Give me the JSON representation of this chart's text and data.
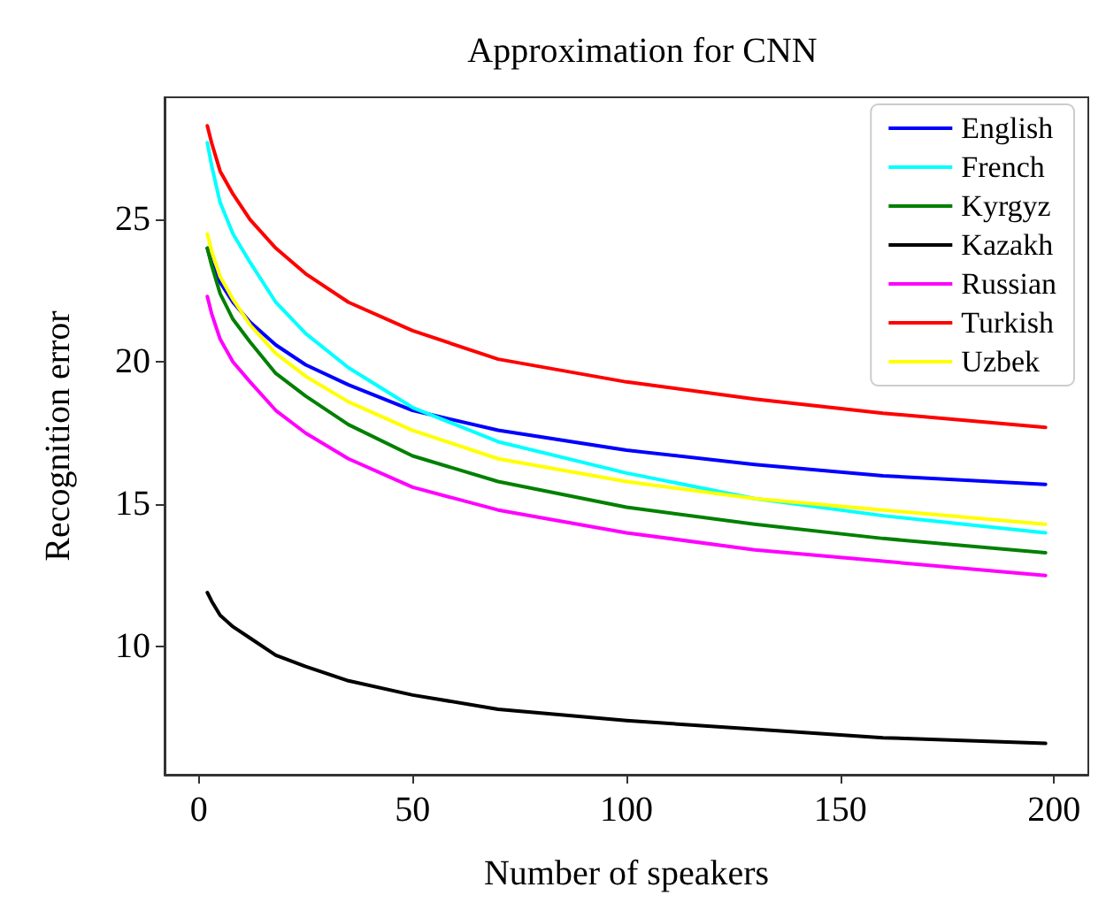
{
  "chart_data": {
    "type": "line",
    "title": "Approximation for CNN",
    "xlabel": "Number of speakers",
    "ylabel": "Recognition error",
    "x": [
      2,
      3,
      5,
      8,
      12,
      18,
      25,
      35,
      50,
      70,
      100,
      130,
      160,
      198
    ],
    "series": [
      {
        "name": "English",
        "color": "#0000ff",
        "values": [
          24.0,
          23.5,
          22.8,
          22.1,
          21.4,
          20.6,
          19.9,
          19.2,
          18.3,
          17.6,
          16.9,
          16.4,
          16.0,
          15.7
        ]
      },
      {
        "name": "French",
        "color": "#00ffff",
        "values": [
          27.7,
          26.9,
          25.6,
          24.5,
          23.5,
          22.1,
          21.0,
          19.8,
          18.4,
          17.2,
          16.1,
          15.2,
          14.6,
          14.0
        ]
      },
      {
        "name": "Kyrgyz",
        "color": "#008000",
        "values": [
          24.0,
          23.4,
          22.4,
          21.5,
          20.7,
          19.6,
          18.8,
          17.8,
          16.7,
          15.8,
          14.9,
          14.3,
          13.8,
          13.3
        ]
      },
      {
        "name": "Kazakh",
        "color": "#000000",
        "values": [
          11.9,
          11.6,
          11.1,
          10.7,
          10.3,
          9.7,
          9.3,
          8.8,
          8.3,
          7.8,
          7.4,
          7.1,
          6.8,
          6.6
        ]
      },
      {
        "name": "Russian",
        "color": "#ff00ff",
        "values": [
          22.3,
          21.7,
          20.8,
          20.0,
          19.3,
          18.3,
          17.5,
          16.6,
          15.6,
          14.8,
          14.0,
          13.4,
          13.0,
          12.5
        ]
      },
      {
        "name": "Turkish",
        "color": "#ff0000",
        "values": [
          28.3,
          27.7,
          26.7,
          25.9,
          25.0,
          24.0,
          23.1,
          22.1,
          21.1,
          20.1,
          19.3,
          18.7,
          18.2,
          17.7
        ]
      },
      {
        "name": "Uzbek",
        "color": "#ffff00",
        "values": [
          24.5,
          23.9,
          23.0,
          22.2,
          21.3,
          20.3,
          19.5,
          18.6,
          17.6,
          16.6,
          15.8,
          15.2,
          14.8,
          14.3
        ]
      }
    ],
    "xlim": [
      -8,
      208
    ],
    "xticks": [
      0,
      50,
      100,
      150,
      200
    ],
    "ylim": [
      5.5,
      29.3
    ],
    "yticks": [
      10,
      15,
      20,
      25
    ],
    "grid": false,
    "legend": "top right",
    "marker": "none",
    "line_style": "solid"
  }
}
